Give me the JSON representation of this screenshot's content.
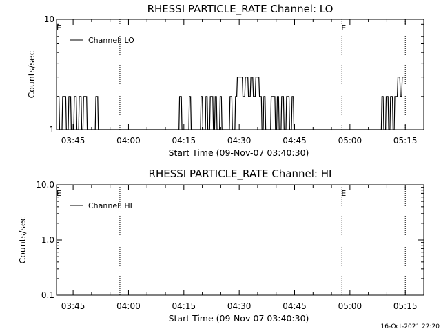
{
  "footer_timestamp": "16-Oct-2021 22:20",
  "chart_data": [
    {
      "type": "line",
      "title": "RHESSI PARTICLE_RATE Channel: LO",
      "xlabel": "Start Time (09-Nov-07 03:40:30)",
      "ylabel": "Counts/sec",
      "yscale": "log",
      "ylim": [
        1,
        10
      ],
      "xlim": [
        "03:40:30",
        "05:20:00"
      ],
      "xticks": [
        "03:45",
        "04:00",
        "04:15",
        "04:30",
        "04:45",
        "05:00",
        "05:15"
      ],
      "yticks": [
        "1",
        "10"
      ],
      "grid": false,
      "legend": {
        "position": "top-left",
        "entries": [
          "Channel: LO"
        ]
      },
      "markers": [
        {
          "label": "E",
          "time": "03:40:30"
        },
        {
          "label": "",
          "time": "03:57:40"
        },
        {
          "label": "E",
          "time": "04:57:50"
        },
        {
          "label": "",
          "time": "05:15:00"
        }
      ],
      "series": [
        {
          "name": "Channel: LO",
          "x": [
            "03:40:30",
            "03:41:10",
            "03:41:20",
            "03:42:00",
            "03:42:10",
            "03:43:00",
            "03:43:10",
            "03:43:40",
            "03:43:50",
            "03:44:20",
            "03:44:30",
            "03:45:10",
            "03:45:20",
            "03:45:50",
            "03:46:00",
            "03:46:30",
            "03:46:40",
            "03:47:10",
            "03:47:20",
            "03:47:40",
            "03:47:50",
            "03:48:40",
            "03:48:50",
            "03:51:00",
            "03:51:10",
            "03:51:40",
            "03:51:50",
            "04:13:40",
            "04:13:50",
            "04:14:20",
            "04:14:30",
            "04:16:20",
            "04:16:30",
            "04:16:50",
            "04:17:00",
            "04:19:30",
            "04:19:40",
            "04:20:00",
            "04:20:10",
            "04:20:50",
            "04:21:00",
            "04:21:20",
            "04:21:30",
            "04:22:00",
            "04:22:10",
            "04:22:50",
            "04:23:00",
            "04:23:20",
            "04:23:30",
            "04:23:50",
            "04:24:00",
            "04:24:40",
            "04:24:50",
            "04:25:10",
            "04:25:20",
            "04:27:20",
            "04:27:30",
            "04:28:00",
            "04:28:10",
            "04:28:50",
            "04:29:00",
            "04:29:20",
            "04:29:30",
            "04:30:50",
            "04:31:00",
            "04:31:30",
            "04:31:40",
            "04:32:20",
            "04:32:30",
            "04:33:00",
            "04:33:10",
            "04:33:40",
            "04:33:50",
            "04:34:20",
            "04:34:30",
            "04:35:20",
            "04:35:30",
            "04:36:00",
            "04:36:10",
            "04:36:30",
            "04:36:40",
            "04:37:00",
            "04:37:10",
            "04:38:30",
            "04:38:40",
            "04:39:40",
            "04:39:50",
            "04:40:10",
            "04:40:20",
            "04:40:40",
            "04:40:50",
            "04:41:20",
            "04:41:30",
            "04:42:00",
            "04:42:10",
            "04:42:40",
            "04:42:50",
            "04:43:30",
            "04:43:40",
            "04:44:10",
            "04:44:20",
            "04:44:40",
            "04:44:50",
            "05:08:30",
            "05:08:40",
            "05:09:00",
            "05:09:10",
            "05:09:40",
            "05:09:50",
            "05:10:20",
            "05:10:30",
            "05:10:50",
            "05:11:00",
            "05:11:30",
            "05:11:40",
            "05:12:00",
            "05:12:10",
            "05:12:50",
            "05:13:00",
            "05:13:30",
            "05:13:40",
            "05:14:00",
            "05:14:10",
            "05:14:40",
            "05:14:50",
            "05:15:10"
          ],
          "y": [
            2,
            2,
            1,
            1,
            2,
            2,
            1,
            1,
            2,
            2,
            1,
            1,
            2,
            2,
            1,
            1,
            2,
            2,
            1,
            1,
            2,
            2,
            1,
            1,
            2,
            2,
            1,
            1,
            2,
            2,
            1,
            1,
            2,
            2,
            1,
            1,
            2,
            2,
            1,
            1,
            2,
            2,
            1,
            1,
            2,
            2,
            1,
            1,
            2,
            2,
            1,
            1,
            2,
            2,
            1,
            1,
            2,
            2,
            1,
            1,
            2,
            2,
            3,
            3,
            2,
            2,
            3,
            3,
            2,
            2,
            3,
            3,
            2,
            2,
            3,
            3,
            2,
            2,
            1,
            1,
            2,
            2,
            1,
            1,
            2,
            2,
            1,
            1,
            2,
            2,
            1,
            1,
            2,
            2,
            1,
            1,
            2,
            2,
            1,
            1,
            2,
            2,
            1,
            1,
            2,
            2,
            1,
            1,
            2,
            2,
            1,
            1,
            2,
            2,
            1,
            1,
            2,
            2,
            3,
            3,
            2,
            2,
            3,
            3,
            3,
            3
          ]
        }
      ]
    },
    {
      "type": "line",
      "title": "RHESSI PARTICLE_RATE Channel: HI",
      "xlabel": "Start Time (09-Nov-07 03:40:30)",
      "ylabel": "Counts/sec",
      "yscale": "log",
      "ylim": [
        0.1,
        10
      ],
      "xlim": [
        "03:40:30",
        "05:20:00"
      ],
      "xticks": [
        "03:45",
        "04:00",
        "04:15",
        "04:30",
        "04:45",
        "05:00",
        "05:15"
      ],
      "yticks": [
        "0.1",
        "1.0",
        "10.0"
      ],
      "grid": false,
      "legend": {
        "position": "top-left",
        "entries": [
          "Channel: HI"
        ]
      },
      "markers": [
        {
          "label": "E",
          "time": "03:40:30"
        },
        {
          "label": "",
          "time": "03:57:40"
        },
        {
          "label": "E",
          "time": "04:57:50"
        },
        {
          "label": "",
          "time": "05:15:00"
        }
      ],
      "series": [
        {
          "name": "Channel: HI",
          "x": [],
          "y": []
        }
      ]
    }
  ]
}
